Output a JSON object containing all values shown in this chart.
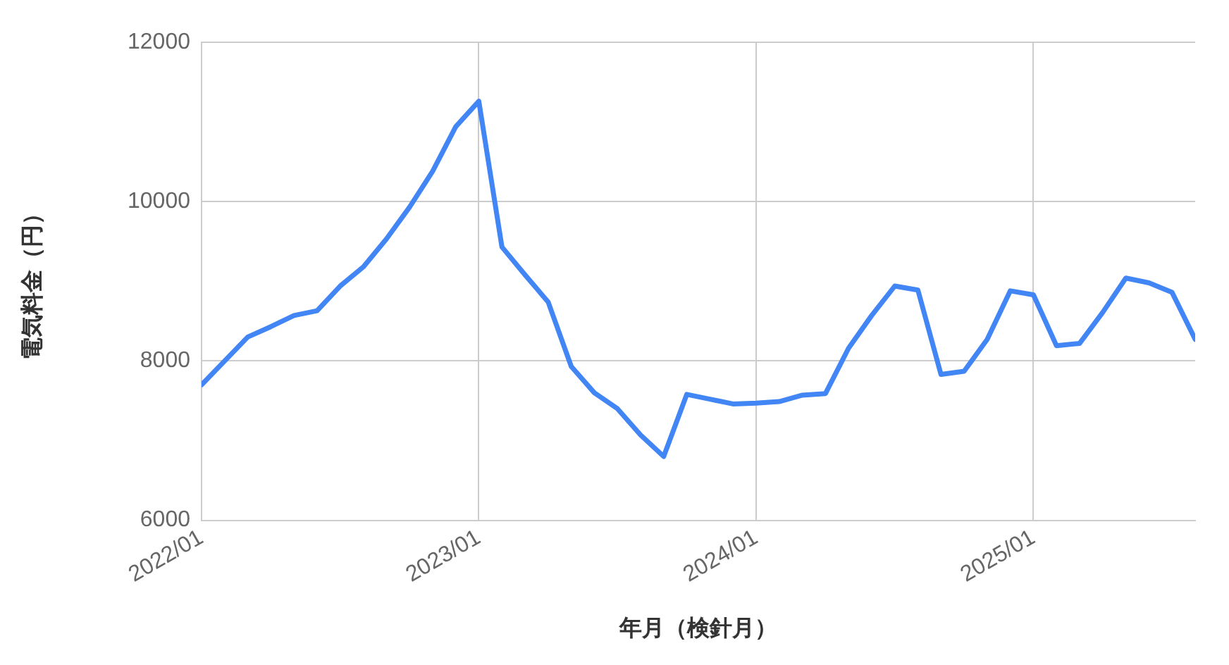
{
  "chart_data": {
    "type": "line",
    "xlabel": "年月（検針月）",
    "ylabel": "電気料金（円）",
    "x": [
      "2022-01",
      "2022-02",
      "2022-03",
      "2022-04",
      "2022-05",
      "2022-06",
      "2022-07",
      "2022-08",
      "2022-09",
      "2022-10",
      "2022-11",
      "2022-12",
      "2023-01",
      "2023-02",
      "2023-03",
      "2023-04",
      "2023-05",
      "2023-06",
      "2023-07",
      "2023-08",
      "2023-09",
      "2023-10",
      "2023-11",
      "2023-12",
      "2024-01",
      "2024-02",
      "2024-03",
      "2024-04",
      "2024-05",
      "2024-06",
      "2024-07",
      "2024-08",
      "2024-09",
      "2024-10",
      "2024-11",
      "2024-12",
      "2025-01",
      "2025-02",
      "2025-03",
      "2025-04",
      "2025-05",
      "2025-06",
      "2025-07",
      "2025-08"
    ],
    "series": [
      {
        "color": "#4285f4",
        "values": [
          7700,
          8000,
          8300,
          8430,
          8570,
          8630,
          8940,
          9180,
          9530,
          9930,
          10380,
          10940,
          11260,
          9430,
          9080,
          8740,
          7930,
          7600,
          7400,
          7070,
          6800,
          7580,
          7520,
          7460,
          7470,
          7490,
          7570,
          7590,
          8160,
          8570,
          8940,
          8890,
          7830,
          7870,
          8270,
          8880,
          8830,
          8190,
          8220,
          8610,
          9040,
          8980,
          8860,
          8270
        ]
      }
    ],
    "xlim": [
      "2022-01",
      "2025-08"
    ],
    "xticks": [
      {
        "value": "2022-01",
        "label": "2022/01"
      },
      {
        "value": "2023-01",
        "label": "2023/01"
      },
      {
        "value": "2024-01",
        "label": "2024/01"
      },
      {
        "value": "2025-01",
        "label": "2025/01"
      }
    ],
    "ylim": [
      6000,
      12000
    ],
    "yticks": [
      6000,
      8000,
      10000,
      12000
    ],
    "grid": true,
    "legend": false,
    "marker": "none",
    "line_style": "solid"
  }
}
